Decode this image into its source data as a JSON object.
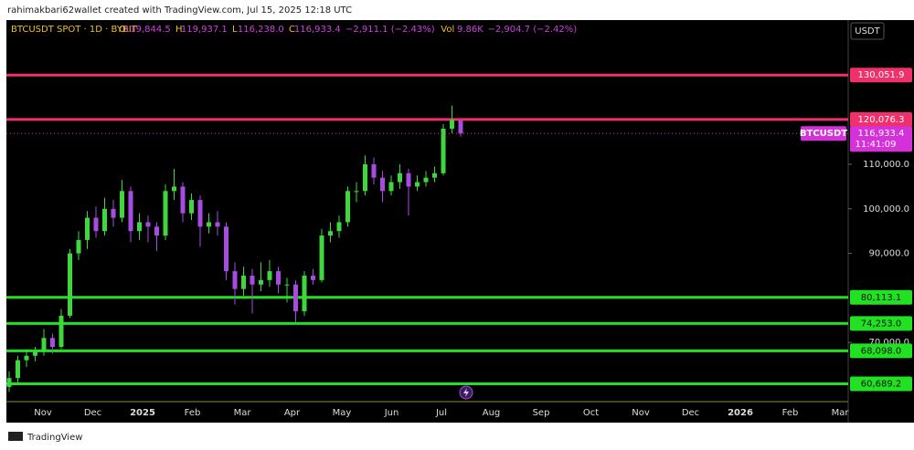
{
  "header": {
    "caption": "rahimakbari62wallet created with TradingView.com, Jul 15, 2025 12:18 UTC",
    "symbol": "BTCUSDT SPOT · 1D · BYBIT",
    "ohlc": [
      {
        "key": "O",
        "value": "119,844.5"
      },
      {
        "key": "H",
        "value": "119,937.1"
      },
      {
        "key": "L",
        "value": "116,238.0"
      },
      {
        "key": "C",
        "value": "116,933.4"
      }
    ],
    "change": "−2,911.1 (−2.43%)",
    "volume_key": "Vol",
    "volume": "9.86K",
    "volume_change": "−2,904.7 (−2.42%)",
    "currency": "USDT"
  },
  "footer": {
    "brand": "TradingView"
  },
  "chart_data": {
    "type": "candlestick",
    "up_color": "#3ed83e",
    "down_color": "#a64ce0",
    "ylim": [
      56700,
      142400
    ],
    "yticks": [
      {
        "value": 110000,
        "label": "110,000.0"
      },
      {
        "value": 100000,
        "label": "100,000.0"
      },
      {
        "value": 90000,
        "label": "90,000.0"
      },
      {
        "value": 70000,
        "label": "70,000.0"
      }
    ],
    "time_labels": [
      "Nov",
      "Dec",
      "2025",
      "Feb",
      "Mar",
      "Apr",
      "May",
      "Jun",
      "Jul",
      "Aug",
      "Sep",
      "Oct",
      "Nov",
      "Dec",
      "2026",
      "Feb",
      "Mar"
    ],
    "open": [
      60000,
      62000,
      66000,
      67000,
      68000,
      71000,
      69000,
      76000,
      90000,
      93000,
      98000,
      95000,
      100000,
      98000,
      104000,
      95000,
      97000,
      96000,
      94000,
      104000,
      105000,
      99000,
      102000,
      96000,
      97000,
      96000,
      86000,
      82000,
      85000,
      83000,
      84000,
      86000,
      83000,
      83000,
      77000,
      85000,
      84000,
      94000,
      95000,
      97000,
      104000,
      104000,
      110000,
      107000,
      104000,
      106000,
      108000,
      105000,
      106000,
      107000,
      108000,
      118000,
      119844.5
    ],
    "high": [
      63500,
      67000,
      68500,
      69000,
      73000,
      72000,
      77500,
      91000,
      95000,
      99500,
      100500,
      102500,
      102000,
      106500,
      105000,
      99000,
      98500,
      97000,
      105500,
      109000,
      106000,
      103500,
      103000,
      99000,
      99500,
      97000,
      88000,
      87000,
      86500,
      88000,
      88500,
      87000,
      84500,
      84000,
      86000,
      86500,
      95500,
      97000,
      98500,
      105000,
      106000,
      112000,
      111500,
      108500,
      107500,
      110000,
      109000,
      107500,
      108500,
      109500,
      119000,
      123200,
      119937.1
    ],
    "low": [
      58900,
      61000,
      64500,
      65800,
      67000,
      67500,
      68500,
      75500,
      88500,
      91000,
      93500,
      94000,
      96000,
      97000,
      92500,
      93000,
      92500,
      90500,
      93000,
      102000,
      97000,
      97500,
      91500,
      94500,
      94000,
      84000,
      78500,
      80500,
      76500,
      81500,
      82500,
      81000,
      79000,
      74500,
      76000,
      83000,
      83500,
      92500,
      93500,
      96000,
      101500,
      103000,
      105500,
      101500,
      103000,
      104500,
      98500,
      104000,
      105000,
      106000,
      107500,
      117000,
      116238
    ],
    "close": [
      62000,
      66000,
      67000,
      68000,
      71000,
      69000,
      76000,
      90000,
      93000,
      98000,
      95000,
      100000,
      98000,
      104000,
      95000,
      97000,
      96000,
      94000,
      104000,
      105000,
      99000,
      102000,
      96000,
      97000,
      96000,
      86000,
      82000,
      85000,
      83000,
      84000,
      86000,
      83000,
      83000,
      77000,
      85000,
      84000,
      94000,
      95000,
      97000,
      104000,
      104000,
      110000,
      107000,
      104000,
      106000,
      108000,
      105000,
      106000,
      107000,
      108000,
      118000,
      120000,
      116933.4
    ],
    "levels": [
      {
        "value": 130051.9,
        "label": "130,051.9",
        "color": "#f0306a"
      },
      {
        "value": 120076.3,
        "label": "120,076.3",
        "color": "#f0306a"
      },
      {
        "value": 80113.1,
        "label": "80,113.1",
        "color": "#22e022"
      },
      {
        "value": 74253.0,
        "label": "74,253.0",
        "color": "#22e022"
      },
      {
        "value": 68098.0,
        "label": "68,098.0",
        "color": "#22e022"
      },
      {
        "value": 60689.2,
        "label": "60,689.2",
        "color": "#22e022"
      }
    ],
    "last_price": {
      "value": 116933.4,
      "label": "116,933.4",
      "symbol": "BTCUSDT",
      "countdown": "11:41:09",
      "color": "#d431d8"
    }
  }
}
